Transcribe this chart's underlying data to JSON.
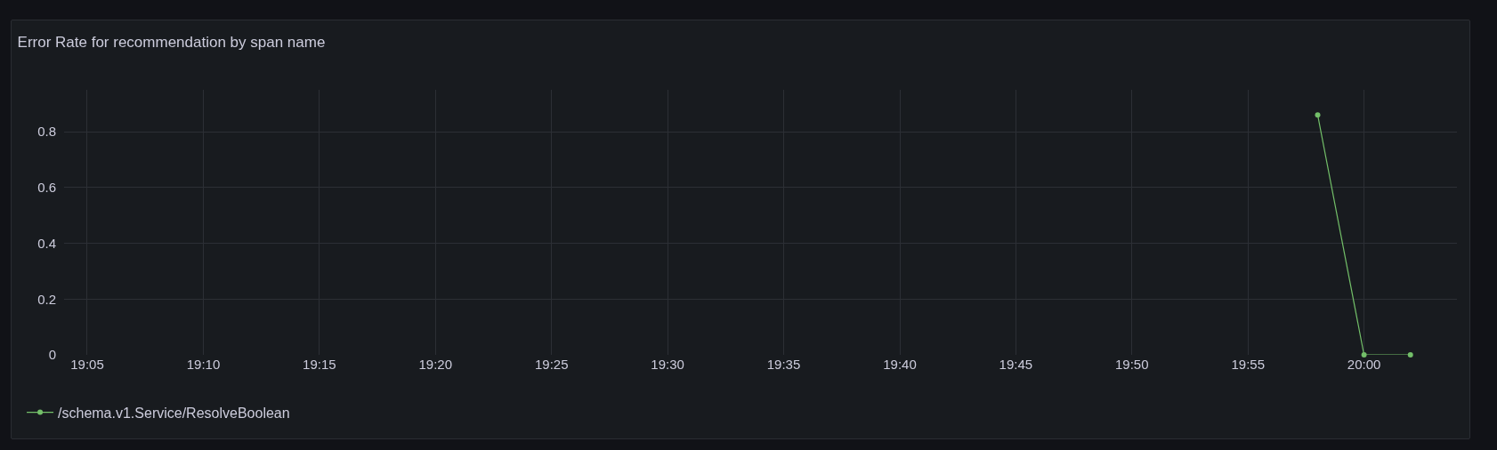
{
  "chart_data": {
    "type": "line",
    "title": "Error Rate for recommendation by span name",
    "x": [
      19.9667,
      20,
      20.0333
    ],
    "series": [
      {
        "name": "/schema.v1.Service/ResolveBoolean",
        "color": "#73bf69",
        "values": [
          0.86,
          0,
          0
        ]
      }
    ],
    "xlim": [
      19.0667,
      20.0667
    ],
    "xticks": [
      {
        "value": 19.0833,
        "label": "19:05"
      },
      {
        "value": 19.1667,
        "label": "19:10"
      },
      {
        "value": 19.25,
        "label": "19:15"
      },
      {
        "value": 19.3333,
        "label": "19:20"
      },
      {
        "value": 19.4167,
        "label": "19:25"
      },
      {
        "value": 19.5,
        "label": "19:30"
      },
      {
        "value": 19.5833,
        "label": "19:35"
      },
      {
        "value": 19.6667,
        "label": "19:40"
      },
      {
        "value": 19.75,
        "label": "19:45"
      },
      {
        "value": 19.8333,
        "label": "19:50"
      },
      {
        "value": 19.9167,
        "label": "19:55"
      },
      {
        "value": 20,
        "label": "20:00"
      }
    ],
    "ylim": [
      0,
      0.95
    ],
    "yticks": [
      0,
      0.2,
      0.4,
      0.6,
      0.8
    ],
    "grid": true,
    "legend": "bottom left",
    "marker": "circle",
    "line_style": "solid"
  }
}
